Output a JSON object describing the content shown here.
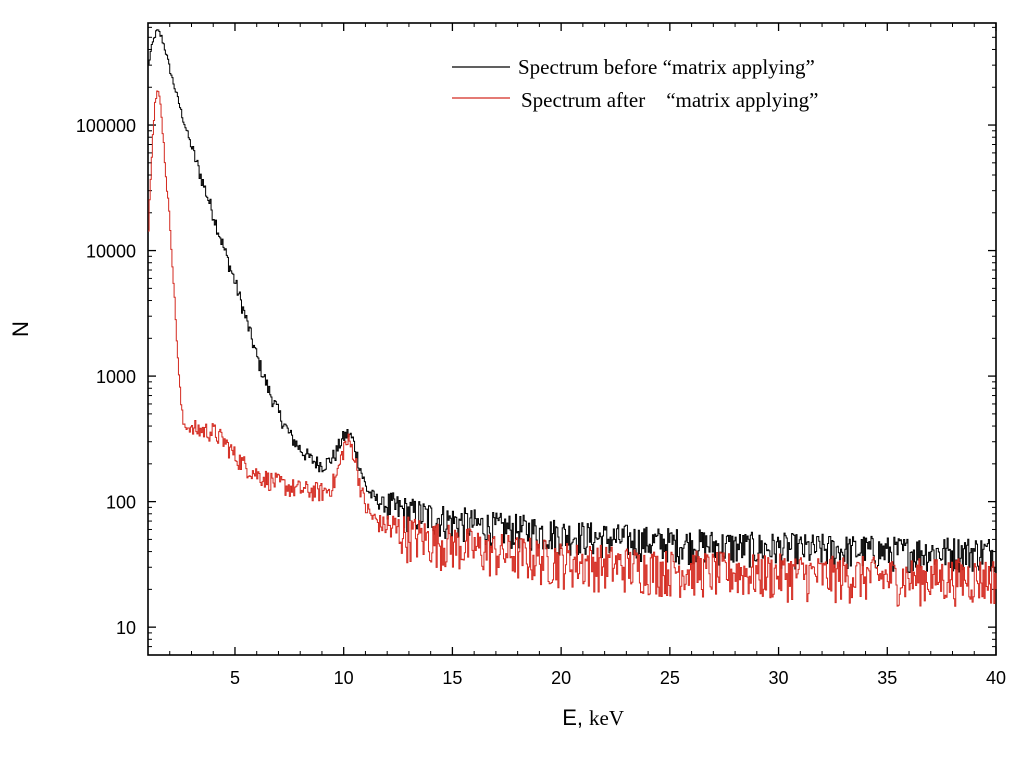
{
  "chart_data": {
    "type": "line",
    "scale": {
      "x": "linear",
      "y": "log"
    },
    "xlim": [
      1,
      40
    ],
    "ylim": [
      6,
      650000
    ],
    "xticks": [
      5,
      10,
      15,
      20,
      25,
      30,
      35,
      40
    ],
    "xtick_labels": [
      "5",
      "10",
      "15",
      "20",
      "25",
      "30",
      "35",
      "40"
    ],
    "yticks": [
      10,
      100,
      1000,
      10000,
      100000
    ],
    "ytick_labels": [
      "10",
      "100",
      "1000",
      "10000",
      "100000"
    ],
    "xlabel": "E,",
    "xlabel_unit": "keV",
    "ylabel": "N",
    "legend_position": "top-right",
    "series": [
      {
        "name": "Spectrum before “matrix applying”",
        "color": "#000000",
        "x": [
          1.0,
          1.1,
          1.2,
          1.3,
          1.4,
          1.5,
          1.6,
          1.7,
          1.8,
          1.9,
          2.0,
          2.2,
          2.4,
          2.6,
          2.8,
          3.0,
          3.5,
          4.0,
          4.5,
          5.0,
          5.5,
          6.0,
          6.5,
          7.0,
          7.5,
          8.0,
          8.5,
          9.0,
          9.3,
          9.6,
          9.8,
          10.0,
          10.2,
          10.4,
          10.6,
          10.8,
          11.0,
          11.3,
          11.6,
          12.0,
          13.0,
          14.0,
          15.0,
          16.0,
          17.0,
          18.0,
          19.0,
          20.0,
          21.0,
          22.0,
          23.0,
          24.0,
          25.0,
          26.0,
          27.0,
          28.0,
          29.0,
          30.0,
          31.0,
          32.0,
          33.0,
          34.0,
          35.0,
          36.0,
          37.0,
          38.0,
          39.0,
          40.0
        ],
        "y": [
          300000,
          380000,
          450000,
          520000,
          560000,
          540000,
          500000,
          440000,
          380000,
          320000,
          270000,
          200000,
          150000,
          110000,
          85000,
          65000,
          35000,
          19000,
          10000,
          5500,
          2800,
          1400,
          800,
          500,
          340,
          260,
          215,
          195,
          210,
          240,
          290,
          330,
          350,
          310,
          230,
          170,
          130,
          110,
          100,
          92,
          82,
          76,
          70,
          66,
          62,
          60,
          58,
          55,
          53,
          51,
          50,
          48,
          47,
          46,
          45,
          44,
          43,
          43,
          42,
          42,
          41,
          41,
          40,
          40,
          40,
          40,
          40,
          40
        ]
      },
      {
        "name": "Spectrum after    “matrix applying”",
        "color": "#d42a20",
        "x": [
          1.0,
          1.1,
          1.2,
          1.3,
          1.4,
          1.5,
          1.6,
          1.7,
          1.8,
          1.9,
          2.0,
          2.1,
          2.2,
          2.3,
          2.4,
          2.5,
          2.6,
          2.8,
          3.0,
          3.5,
          4.0,
          4.5,
          5.0,
          5.5,
          6.0,
          6.5,
          7.0,
          7.5,
          8.0,
          8.5,
          9.0,
          9.3,
          9.6,
          9.8,
          10.0,
          10.2,
          10.4,
          10.6,
          10.8,
          11.0,
          11.3,
          11.6,
          12.0,
          13.0,
          14.0,
          15.0,
          16.0,
          17.0,
          18.0,
          19.0,
          20.0,
          21.0,
          22.0,
          23.0,
          24.0,
          25.0,
          26.0,
          27.0,
          28.0,
          29.0,
          30.0,
          31.0,
          32.0,
          33.0,
          34.0,
          35.0,
          36.0,
          37.0,
          38.0,
          39.0,
          40.0
        ],
        "y": [
          15000,
          40000,
          90000,
          150000,
          180000,
          170000,
          120000,
          70000,
          40000,
          25000,
          15000,
          8000,
          4000,
          2000,
          1000,
          600,
          420,
          390,
          380,
          370,
          360,
          300,
          230,
          190,
          165,
          150,
          140,
          130,
          125,
          122,
          120,
          125,
          150,
          200,
          280,
          300,
          260,
          180,
          120,
          90,
          75,
          68,
          62,
          55,
          50,
          46,
          43,
          40,
          38,
          36,
          34,
          33,
          32,
          31,
          30,
          29,
          29,
          28,
          28,
          27,
          27,
          27,
          26,
          26,
          26,
          25,
          25,
          25,
          25,
          25,
          25
        ]
      }
    ]
  }
}
